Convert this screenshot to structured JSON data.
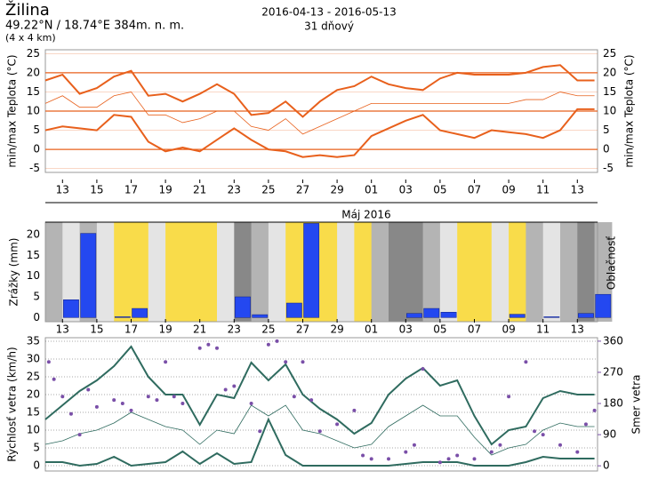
{
  "header": {
    "title": "Žilina",
    "coords": "49.22°N / 18.74°E   384m. n. m.",
    "grid": "(4 x 4 km)",
    "period": "2016-04-13 - 2016-05-13",
    "length": "31 dňový"
  },
  "chart_data": [
    {
      "type": "line",
      "categories": [
        null,
        "13",
        null,
        "15",
        null,
        "17",
        null,
        "19",
        null,
        "21",
        null,
        "23",
        null,
        "25",
        null,
        "27",
        null,
        "29",
        null,
        "01",
        null,
        "03",
        null,
        "05",
        null,
        "07",
        null,
        "09",
        null,
        "11",
        null,
        "13",
        null
      ],
      "series": [
        {
          "color": "#e8601c",
          "line_width": 2,
          "values": [
            18,
            19.5,
            14.5,
            16,
            19,
            20.5,
            14,
            14.5,
            12.5,
            14.5,
            17,
            14.5,
            9,
            9.5,
            12.5,
            8.5,
            12.5,
            15.5,
            16.5,
            19,
            17,
            16,
            15.5,
            18.5,
            20,
            19.5,
            19.5,
            19.5,
            20,
            21.5,
            22,
            18,
            18
          ]
        },
        {
          "color": "#e8601c",
          "line_width": 0.8,
          "values": [
            12,
            14,
            11,
            11,
            14,
            15,
            9,
            9,
            7,
            8,
            10,
            10,
            6,
            5,
            8,
            4,
            6,
            8,
            10,
            12,
            12,
            12,
            12,
            12,
            12,
            12,
            12,
            12,
            13,
            13,
            15,
            14,
            14
          ]
        },
        {
          "color": "#e8601c",
          "line_width": 2,
          "values": [
            5,
            6,
            5.5,
            5,
            9,
            8.5,
            2,
            -0.5,
            0.5,
            -0.5,
            2.5,
            5.5,
            2.5,
            0,
            -0.5,
            -2,
            -1.5,
            -2,
            -1.5,
            3.5,
            5.5,
            7.5,
            9,
            5,
            4,
            3,
            5,
            4.5,
            4,
            3,
            5,
            10.5,
            10.5
          ]
        }
      ],
      "ylim": [
        -6,
        26
      ],
      "yticks": [
        -5,
        0,
        5,
        10,
        15,
        20,
        25
      ],
      "grid": true,
      "y_label": "min/max Teplota (°C)",
      "axis_color": "#e8601c"
    },
    {
      "type": "bar",
      "categories": [
        null,
        "13",
        null,
        "15",
        null,
        "17",
        null,
        "19",
        null,
        "21",
        null,
        "23",
        null,
        "25",
        null,
        "27",
        null,
        "29",
        null,
        "01",
        null,
        "03",
        null,
        "05",
        null,
        "07",
        null,
        "09",
        null,
        "11",
        null,
        "13",
        null
      ],
      "values": [
        0,
        4.3,
        20.3,
        0,
        0.2,
        2.2,
        0,
        0,
        0,
        0,
        0,
        5,
        0.7,
        0,
        3.5,
        22.7,
        0,
        0,
        0,
        0,
        0,
        1,
        2.2,
        1.3,
        0,
        0,
        0,
        0.8,
        0,
        0.2,
        0,
        1,
        5.6
      ],
      "color": "#2448f0",
      "cloud": {
        "values": [
          2,
          1,
          2,
          1,
          0,
          0,
          1,
          0,
          0,
          0,
          1,
          3,
          2,
          1,
          0,
          0,
          0,
          1,
          0,
          2,
          3,
          3,
          2,
          1,
          0,
          0,
          1,
          0,
          2,
          1,
          2,
          3,
          2
        ],
        "colors": [
          "#f9dc4a",
          "#e4e4e4",
          "#b4b4b4",
          "#888888"
        ]
      },
      "ylim": [
        -1,
        23
      ],
      "yticks": [
        0,
        5,
        10,
        15,
        20
      ],
      "y_label": "Zrážky (mm)",
      "y2_label": "Oblačnosť",
      "month_label": "Máj 2016",
      "axis_color": "#2448f0"
    },
    {
      "type": "line",
      "series": [
        {
          "color": "#2f6b5f",
          "line_width": 2,
          "values": [
            13,
            17,
            21,
            24,
            28,
            33.5,
            25,
            20,
            20,
            11.5,
            20,
            19,
            29,
            24,
            28.5,
            20,
            16,
            13,
            9,
            12,
            20,
            24.5,
            27.5,
            22.5,
            24,
            14,
            6,
            10,
            11,
            19,
            21,
            20,
            20
          ]
        },
        {
          "color": "#2f6b5f",
          "line_width": 0.8,
          "values": [
            6,
            7,
            9,
            10,
            12,
            15,
            13,
            11,
            10,
            6,
            10,
            9,
            17,
            14,
            17,
            10,
            9,
            7,
            5,
            6,
            11,
            14,
            17,
            14,
            14,
            8,
            3,
            5,
            6,
            10,
            12,
            11,
            11
          ]
        },
        {
          "color": "#2f6b5f",
          "line_width": 2,
          "values": [
            1,
            1,
            0,
            0.5,
            2.5,
            0,
            0.5,
            1,
            4,
            0.5,
            3.5,
            0.5,
            1,
            13,
            3,
            0,
            0,
            0,
            0,
            0,
            0,
            0.5,
            1,
            1,
            1,
            0,
            0,
            0,
            1,
            2.5,
            2,
            2,
            2
          ]
        },
        {
          "type": "scatter",
          "axis": "y2",
          "color": "#7a4fa8",
          "x": [
            0.2,
            0.5,
            1,
            1.5,
            2,
            2.5,
            3,
            4,
            4.5,
            5,
            6,
            6.5,
            7,
            7.5,
            8,
            9,
            9.5,
            10,
            10.5,
            11,
            12,
            12.5,
            13,
            13.5,
            14,
            14.5,
            15,
            15.5,
            16,
            17,
            18,
            18.5,
            19,
            20,
            21,
            21.5,
            22,
            23,
            23.5,
            24,
            25,
            26,
            26.5,
            27,
            28,
            28.5,
            29,
            30,
            31,
            31.5,
            32
          ],
          "values": [
            300,
            250,
            200,
            150,
            90,
            220,
            170,
            190,
            180,
            160,
            200,
            190,
            300,
            200,
            180,
            340,
            350,
            340,
            220,
            230,
            180,
            100,
            350,
            360,
            300,
            200,
            300,
            190,
            100,
            120,
            160,
            30,
            20,
            20,
            40,
            60,
            280,
            10,
            20,
            30,
            20,
            40,
            60,
            200,
            300,
            100,
            90,
            60,
            40,
            120,
            160
          ]
        }
      ],
      "ylim": [
        -1.5,
        36
      ],
      "yticks": [
        0,
        5,
        10,
        15,
        20,
        25,
        30,
        35
      ],
      "y2lim": [
        -15,
        370
      ],
      "y2ticks": [
        0,
        90,
        180,
        270,
        360
      ],
      "grid": true,
      "y_label": "Rýchlosť vetra (km/h)",
      "y2_label": "Smer vetra",
      "axis_color": "#2f6b5f",
      "axis2_color": "#7a4fa8"
    }
  ]
}
